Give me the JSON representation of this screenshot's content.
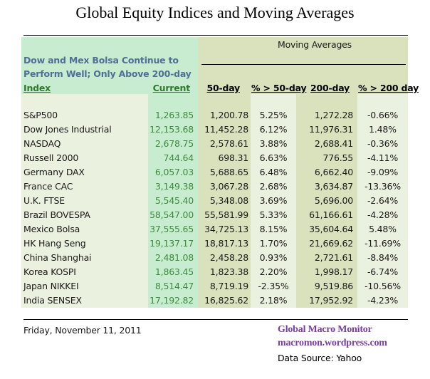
{
  "title": "Global Equity Indices and Moving Averages",
  "subtitle_line1": "Dow and Mex Bolsa Continue to",
  "subtitle_line2": "Perform Well;  Only Above 200-day",
  "group_header": "Moving Averages",
  "columns": [
    "Index",
    "Current",
    "50-day",
    "% > 50-day",
    "200-day",
    "% > 200 day"
  ],
  "rows": [
    [
      "S&P500",
      "1,263.85",
      "1,200.78",
      "5.25%",
      "1,272.28",
      "-0.66%"
    ],
    [
      "Dow Jones Industrial",
      "12,153.68",
      "11,452.28",
      "6.12%",
      "11,976.31",
      "1.48%"
    ],
    [
      "NASDAQ",
      "2,678.75",
      "2,578.61",
      "3.88%",
      "2,688.41",
      "-0.36%"
    ],
    [
      "Russell 2000",
      "744.64",
      "698.31",
      "6.63%",
      "776.55",
      "-4.11%"
    ],
    [
      "Germany DAX",
      "6,057.03",
      "5,688.65",
      "6.48%",
      "6,662.40",
      "-9.09%"
    ],
    [
      "France CAC",
      "3,149.38",
      "3,067.28",
      "2.68%",
      "3,634.87",
      "-13.36%"
    ],
    [
      "U.K. FTSE",
      "5,545.40",
      "5,348.08",
      "3.69%",
      "5,696.00",
      "-2.64%"
    ],
    [
      "Brazil BOVESPA",
      "58,547.00",
      "55,581.99",
      "5.33%",
      "61,166.61",
      "-4.28%"
    ],
    [
      "Mexico Bolsa",
      "37,555.65",
      "34,725.13",
      "8.15%",
      "35,604.64",
      "5.48%"
    ],
    [
      "HK  Hang Seng",
      "19,137.17",
      "18,817.13",
      "1.70%",
      "21,669.62",
      "-11.69%"
    ],
    [
      "China Shanghai",
      "2,481.08",
      "2,458.28",
      "0.93%",
      "2,721.61",
      "-8.84%"
    ],
    [
      "Korea KOSPI",
      "1,863.45",
      "1,823.38",
      "2.20%",
      "1,998.17",
      "-6.74%"
    ],
    [
      "Japan NIKKEI",
      "8,514.47",
      "8,719.19",
      "-2.35%",
      "9,519.86",
      "-10.56%"
    ],
    [
      "India SENSEX",
      "17,192.82",
      "16,825.62",
      "2.18%",
      "17,952.92",
      "-4.23%"
    ]
  ],
  "footer": {
    "date": "Friday, November 11, 2011",
    "brand": "Global Macro Monitor",
    "site": "macromon.wordpress.com",
    "source": "Data Source: Yahoo"
  }
}
